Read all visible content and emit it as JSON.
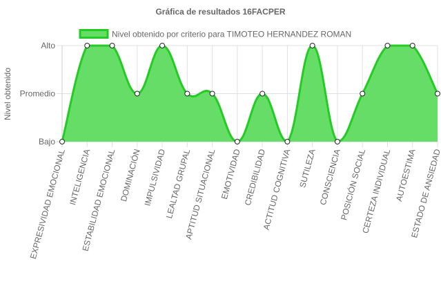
{
  "chart_data": {
    "type": "area",
    "title": "Gráfica de resultados 16FACPER",
    "ylabel": "Nivel obtenido",
    "xlabel": "",
    "y_levels": [
      "Bajo",
      "Promedio",
      "Alto"
    ],
    "ylim": [
      0,
      2
    ],
    "categories": [
      "EXPRESIVIDAD EMOCIONAL",
      "INTELIGENCIA",
      "ESTABILIDAD EMOCIONAL",
      "DOMINACIÓN",
      "IMPULSIVIDAD",
      "LEALTAD GRUPAL",
      "APTITUD SITUACIONAL",
      "EMOTIVIDAD",
      "CREDIBILIDAD",
      "ACTITUD COGNITIVA",
      "SUTILEZA",
      "CONSCIENCIA",
      "POSICIÓN SOCIAL",
      "CERTEZA INDIVIDUAL",
      "AUTOESTIMA",
      "ESTADO DE ANSIEDAD"
    ],
    "series": [
      {
        "name": "Nivel obtenido por criterio para TIMOTEO HERNANDEZ ROMAN",
        "values": [
          0,
          2,
          2,
          1,
          2,
          1,
          1,
          0,
          1,
          0,
          2,
          0,
          1,
          2,
          2,
          1
        ]
      }
    ],
    "grid": true,
    "legend_position": "top"
  },
  "colors": {
    "fill": "#66dd66",
    "line": "#22cc22",
    "grid": "#e0e0e0",
    "axis": "#cccccc",
    "text": "#666666"
  }
}
